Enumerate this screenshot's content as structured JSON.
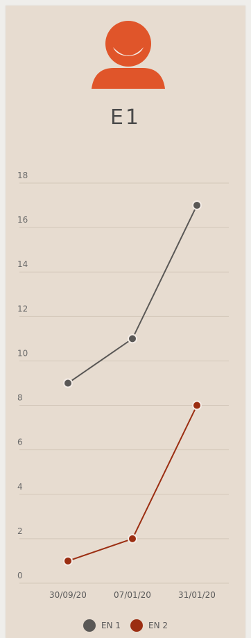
{
  "header": {
    "title": "E1",
    "icon": "user-avatar-icon",
    "accent_color": "#e0552a"
  },
  "chart_data": {
    "type": "line",
    "title": "",
    "xlabel": "",
    "ylabel": "",
    "categories": [
      "30/09/20",
      "07/01/20",
      "31/01/20"
    ],
    "ylim": [
      0,
      18
    ],
    "yticks": [
      0,
      2,
      4,
      6,
      8,
      10,
      12,
      14,
      16,
      18
    ],
    "grid": true,
    "legend_position": "bottom",
    "series": [
      {
        "name": "EN 1",
        "values": [
          9,
          11,
          17
        ],
        "color": "#5a5856"
      },
      {
        "name": "EN 2",
        "values": [
          1,
          2,
          8
        ],
        "color": "#9b2e12"
      }
    ]
  }
}
